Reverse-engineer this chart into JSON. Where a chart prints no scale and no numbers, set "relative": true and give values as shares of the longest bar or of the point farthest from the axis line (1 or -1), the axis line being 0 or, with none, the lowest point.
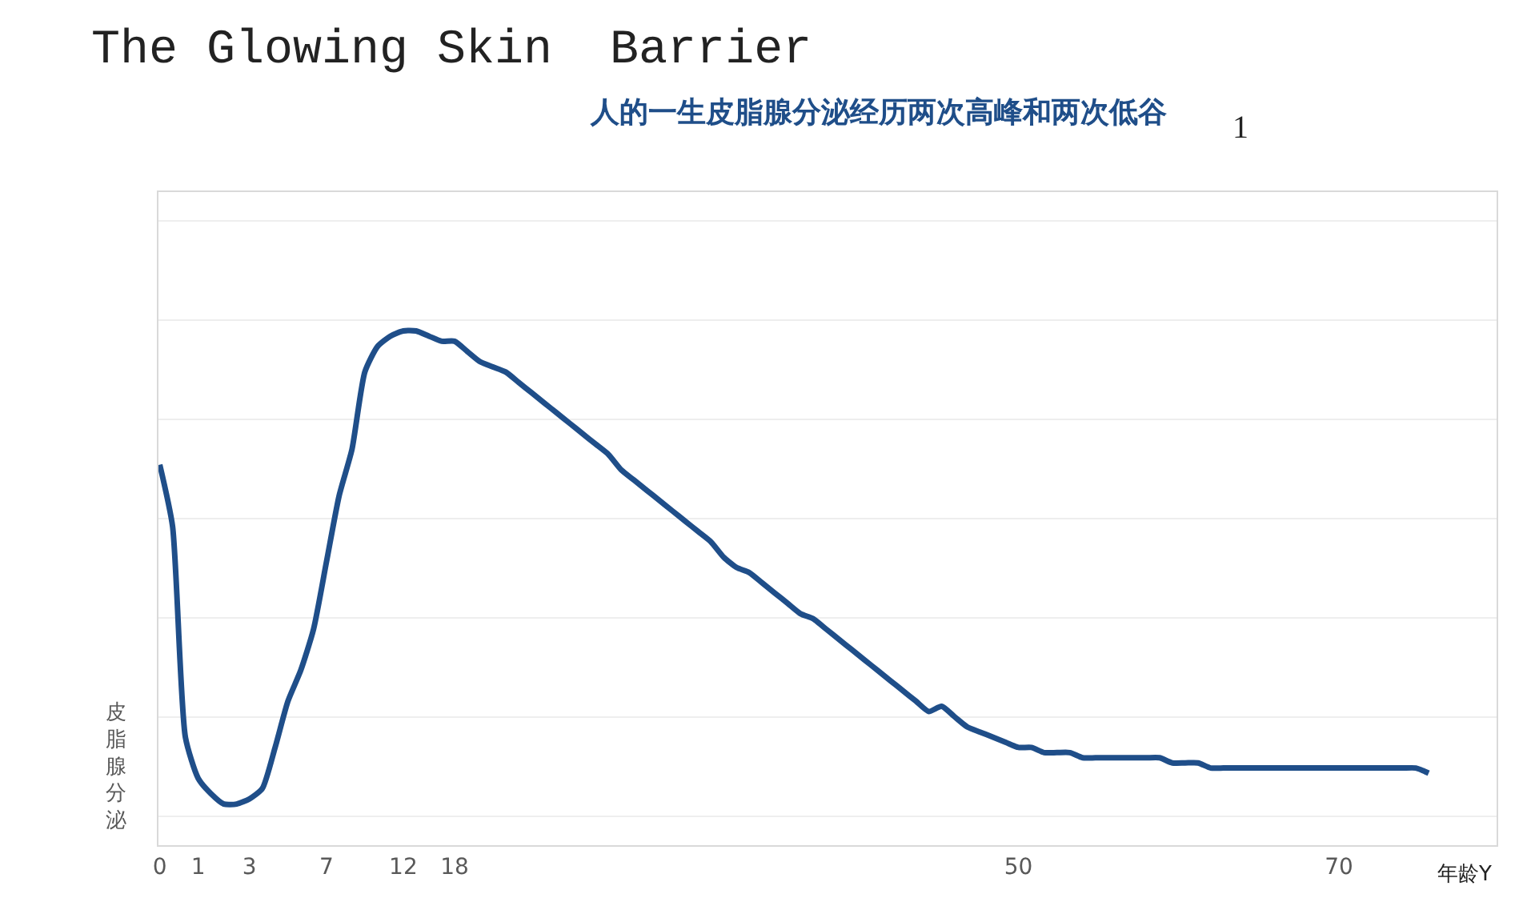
{
  "chart_data": {
    "type": "line",
    "title": "The Glowing Skin  Barrier",
    "subtitle": "人的一生皮脂腺分泌经历两次高峰和两次低谷",
    "xlabel": "年龄Y",
    "ylabel": "皮脂腺分泌",
    "annotations": [
      "1"
    ],
    "relative": true,
    "grid": "y",
    "marker": "none",
    "line_style": "solid",
    "categories": [
      "0",
      null,
      null,
      "1",
      null,
      null,
      null,
      "3",
      null,
      null,
      null,
      null,
      null,
      "7",
      null,
      null,
      null,
      null,
      null,
      "12",
      null,
      null,
      null,
      "18",
      null,
      null,
      null,
      null,
      null,
      null,
      null,
      null,
      null,
      null,
      null,
      null,
      null,
      null,
      null,
      null,
      null,
      null,
      null,
      null,
      null,
      null,
      null,
      null,
      null,
      null,
      null,
      null,
      null,
      null,
      null,
      null,
      null,
      null,
      null,
      null,
      null,
      null,
      null,
      null,
      null,
      null,
      null,
      "50",
      null,
      null,
      null,
      null,
      null,
      null,
      null,
      null,
      null,
      null,
      null,
      null,
      null,
      null,
      null,
      null,
      null,
      null,
      null,
      null,
      null,
      null,
      null,
      null,
      "70",
      null,
      null,
      null,
      null,
      null,
      null,
      null
    ],
    "series": [
      {
        "color": "#1f4e89",
        "values": [
          0.74,
          0.62,
          0.21,
          0.13,
          0.1,
          0.08,
          0.08,
          0.09,
          0.11,
          0.19,
          0.28,
          0.34,
          0.42,
          0.55,
          0.68,
          0.77,
          0.92,
          0.97,
          0.99,
          1.0,
          1.0,
          0.99,
          0.98,
          0.98,
          0.96,
          0.94,
          0.93,
          0.92,
          0.9,
          0.88,
          0.86,
          0.84,
          0.82,
          0.8,
          0.78,
          0.76,
          0.73,
          0.71,
          0.69,
          0.67,
          0.65,
          0.63,
          0.61,
          0.59,
          0.56,
          0.54,
          0.53,
          0.51,
          0.49,
          0.47,
          0.45,
          0.44,
          0.42,
          0.4,
          0.38,
          0.36,
          0.34,
          0.32,
          0.3,
          0.28,
          0.26,
          0.27,
          0.25,
          0.23,
          0.22,
          0.21,
          0.2,
          0.19,
          0.19,
          0.18,
          0.18,
          0.18,
          0.17,
          0.17,
          0.17,
          0.17,
          0.17,
          0.17,
          0.17,
          0.16,
          0.16,
          0.16,
          0.15,
          0.15,
          0.15,
          0.15,
          0.15,
          0.15,
          0.15,
          0.15,
          0.15,
          0.15,
          0.15,
          0.15,
          0.15,
          0.15,
          0.15,
          0.15,
          0.15,
          0.14
        ]
      }
    ]
  }
}
